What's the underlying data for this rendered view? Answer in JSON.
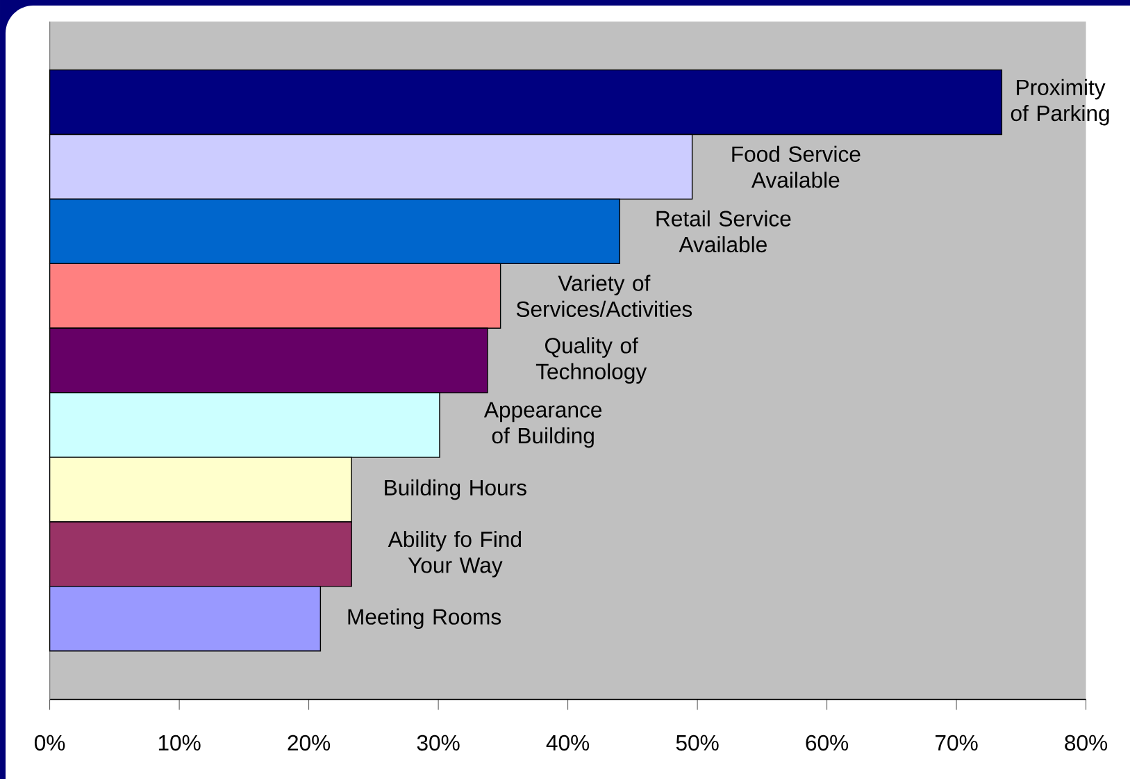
{
  "chart_data": {
    "type": "bar",
    "orientation": "horizontal",
    "categories": [
      "Proximity of Parking",
      "Food Service Available",
      "Retail Service Available",
      "Variety of Services/Activities",
      "Quality of Technology",
      "Appearance of Building",
      "Building Hours",
      "Ability fo Find Your Way",
      "Meeting Rooms"
    ],
    "values": [
      73.5,
      49.6,
      44.0,
      34.8,
      33.8,
      30.1,
      23.3,
      23.3,
      20.9
    ],
    "colors": [
      "#000080",
      "#ccccff",
      "#0066cc",
      "#ff8080",
      "#660066",
      "#ccffff",
      "#ffffcc",
      "#993366",
      "#9999ff"
    ],
    "xlim": [
      0,
      80
    ],
    "xticks": [
      {
        "value": 0,
        "label": "0%"
      },
      {
        "value": 10,
        "label": "10%"
      },
      {
        "value": 20,
        "label": "20%"
      },
      {
        "value": 30,
        "label": "30%"
      },
      {
        "value": 40,
        "label": "40%"
      },
      {
        "value": 50,
        "label": "50%"
      },
      {
        "value": 60,
        "label": "60%"
      },
      {
        "value": 70,
        "label": "70%"
      },
      {
        "value": 80,
        "label": "80%"
      }
    ]
  }
}
